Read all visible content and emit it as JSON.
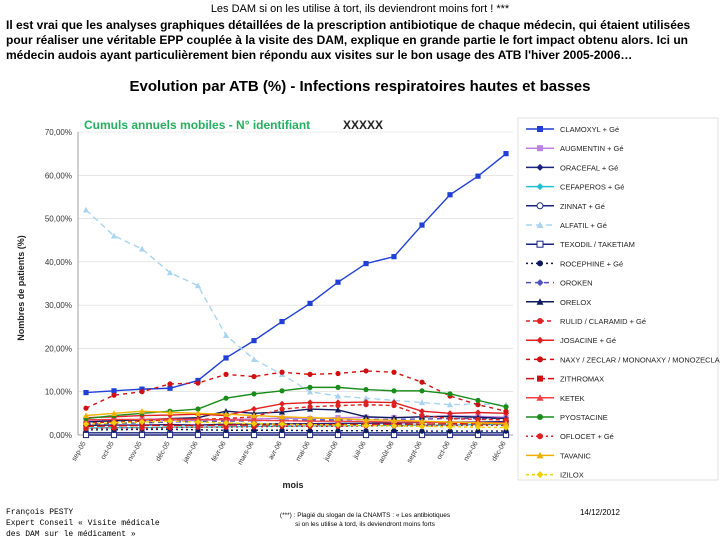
{
  "slide": {
    "top_title": "Les DAM si on les utilise à tort, ils deviendront moins fort ! ***",
    "intro": "Il est vrai que les analyses graphiques détaillées de la prescription antibiotique de chaque médecin, qui étaient utilisées pour réaliser une véritable EPP couplée à la visite des DAM, explique en grande partie le fort impact obtenu alors. Ici un médecin audois ayant particulièrement bien répondu aux visites sur le bon usage des ATB l'hiver 2005-2006…",
    "chart_title": "Evolution par ATB (%) - Infections respiratoires hautes et basses",
    "subtitle": "Cumuls annuels mobiles - N° identifiant",
    "subtitle_code": "XXXXX",
    "footer_left_lines": [
      "François PESTY",
      "Expert Conseil « Visite médicale",
      "des DAM sur le médicament »"
    ],
    "footer_center_lines": [
      "(***) : Plagié du slogan de la CNAMTS : « Les antibiotiques",
      "si on les utilise à tord, ils deviendront moins forts"
    ],
    "footer_right": "14/12/2012"
  },
  "chart_data": {
    "type": "line",
    "title": "Evolution par ATB (%) - Infections respiratoires hautes et basses",
    "subtitle": "Cumuls annuels mobiles - N° identifiant XXXXX",
    "xlabel": "mois",
    "ylabel": "Nombres de patients (%)",
    "ylim": [
      0,
      70
    ],
    "yticks": [
      "0,00%",
      "10,00%",
      "20,00%",
      "30,00%",
      "40,00%",
      "50,00%",
      "60,00%",
      "70,00%"
    ],
    "categories": [
      "sep-05",
      "oct-05",
      "nov-05",
      "déc-05",
      "janv-06",
      "févr-06",
      "mars-06",
      "avr-06",
      "mai-06",
      "juin-06",
      "juil-06",
      "août-06",
      "sept-06",
      "oct-06",
      "nov-06",
      "déc-06"
    ],
    "tick_labels": [
      "sep-05",
      "oct-05",
      "nov-05",
      "déc-05",
      "janv-06",
      "févr-06",
      "mars-06",
      "avr-06",
      "mai-06",
      "juin-06",
      "juil-06",
      "août-06",
      "sept-06",
      "oct-06",
      "nov-06",
      "déc-06"
    ],
    "series": [
      {
        "name": "CLAMOXYL + Gé",
        "color": "#1f3fd6",
        "dash": "",
        "marker": "square",
        "values": [
          9.8,
          10.2,
          10.6,
          10.8,
          12.6,
          17.8,
          21.8,
          26.2,
          30.4,
          35.3,
          39.6,
          41.2,
          48.5,
          55.5,
          59.8,
          65.0
        ]
      },
      {
        "name": "AUGMENTIN + Gé",
        "color": "#c080e0",
        "dash": "",
        "marker": "square",
        "values": [
          3.2,
          3.4,
          3.5,
          3.4,
          3.3,
          3.6,
          3.7,
          3.9,
          3.8,
          4.0,
          4.1,
          4.0,
          4.2,
          4.4,
          4.3,
          4.1
        ]
      },
      {
        "name": "ORACEFAL + Gé",
        "color": "#1a237e",
        "dash": "",
        "marker": "diamond",
        "values": [
          2.2,
          2.3,
          2.3,
          2.4,
          2.3,
          2.5,
          2.5,
          2.6,
          2.6,
          2.7,
          2.7,
          2.8,
          2.9,
          3.0,
          3.0,
          3.1
        ]
      },
      {
        "name": "CEFAPEROS + Gé",
        "color": "#20c0d0",
        "dash": "",
        "marker": "diamond",
        "values": [
          1.6,
          1.7,
          1.7,
          1.8,
          1.8,
          1.9,
          2.0,
          2.0,
          2.1,
          2.1,
          2.2,
          2.2,
          2.3,
          2.3,
          2.4,
          2.4
        ]
      },
      {
        "name": "ZINNAT + Gé",
        "color": "#1a237e",
        "dash": "",
        "marker": "circle-open",
        "values": [
          0.5,
          0.5,
          0.5,
          0.5,
          0.5,
          0.5,
          0.5,
          0.5,
          0.5,
          0.5,
          0.5,
          0.5,
          0.5,
          0.5,
          0.5,
          0.5
        ]
      },
      {
        "name": "ALFATIL + Gé",
        "color": "#a8d4f0",
        "dash": "6,4",
        "marker": "triangle",
        "values": [
          52.0,
          46.0,
          43.0,
          37.5,
          34.5,
          23.0,
          17.5,
          14.0,
          10.0,
          9.0,
          8.5,
          8.0,
          7.5,
          7.0,
          7.2,
          7.0
        ]
      },
      {
        "name": "TEXODIL / TAKETIAM",
        "color": "#1a237e",
        "dash": "",
        "marker": "square-open",
        "values": [
          0.0,
          0.0,
          0.0,
          0.0,
          0.0,
          0.0,
          0.0,
          0.0,
          0.0,
          0.0,
          0.0,
          0.0,
          0.0,
          0.0,
          0.0,
          0.0
        ]
      },
      {
        "name": "ROCEPHINE + Gé",
        "color": "#0d1a5e",
        "dash": "2,3",
        "marker": "circle",
        "values": [
          1.2,
          1.2,
          1.3,
          1.3,
          1.2,
          1.1,
          1.1,
          1.1,
          1.0,
          1.0,
          1.0,
          1.0,
          0.9,
          0.9,
          0.9,
          0.9
        ]
      },
      {
        "name": "OROKEN",
        "color": "#5050c0",
        "dash": "5,4",
        "marker": "diamond",
        "values": [
          2.5,
          2.7,
          2.8,
          3.0,
          3.1,
          3.2,
          3.3,
          3.4,
          3.5,
          3.5,
          3.6,
          3.6,
          3.7,
          3.8,
          3.8,
          3.9
        ]
      },
      {
        "name": "ORELOX",
        "color": "#0d1a5e",
        "dash": "",
        "marker": "triangle",
        "values": [
          3.0,
          3.3,
          3.5,
          3.8,
          4.0,
          5.5,
          5.0,
          5.3,
          6.0,
          5.8,
          4.2,
          4.0,
          4.2,
          4.3,
          4.1,
          3.8
        ]
      },
      {
        "name": "RULID / CLARAMID + Gé",
        "color": "#e02020",
        "dash": "4,3",
        "marker": "circle",
        "values": [
          2.8,
          3.0,
          3.2,
          3.5,
          3.6,
          3.8,
          4.2,
          6.0,
          6.5,
          6.8,
          7.0,
          6.8,
          4.5,
          3.8,
          3.6,
          3.5
        ]
      },
      {
        "name": "JOSACINE + Gé",
        "color": "#e02020",
        "dash": "",
        "marker": "diamond",
        "values": [
          4.0,
          4.2,
          4.5,
          4.6,
          4.8,
          4.5,
          6.0,
          7.2,
          7.5,
          7.5,
          7.6,
          7.5,
          5.5,
          5.0,
          5.2,
          5.0
        ]
      },
      {
        "name": "NAXY / ZECLAR / MONONAXY / MONOZECLAR",
        "color": "#d01010",
        "dash": "4,4",
        "marker": "circle",
        "values": [
          6.2,
          9.2,
          10.0,
          11.8,
          12.0,
          14.0,
          13.5,
          14.5,
          14.0,
          14.2,
          14.8,
          14.5,
          12.2,
          9.0,
          7.0,
          5.5
        ]
      },
      {
        "name": "ZITHROMAX",
        "color": "#d01010",
        "dash": "8,3",
        "marker": "square",
        "values": [
          2.0,
          2.1,
          2.2,
          2.2,
          2.2,
          2.3,
          2.3,
          2.4,
          2.4,
          2.4,
          2.5,
          2.5,
          2.5,
          2.6,
          2.6,
          2.6
        ]
      },
      {
        "name": "KETEK",
        "color": "#f04040",
        "dash": "",
        "marker": "triangle",
        "values": [
          3.5,
          3.6,
          3.6,
          3.7,
          3.6,
          3.5,
          3.4,
          3.3,
          3.2,
          3.2,
          3.1,
          3.0,
          3.0,
          2.9,
          2.9,
          2.8
        ]
      },
      {
        "name": "PYOSTACINE",
        "color": "#1a8c1a",
        "dash": "",
        "marker": "circle",
        "values": [
          3.8,
          4.5,
          5.0,
          5.5,
          6.0,
          8.5,
          9.5,
          10.2,
          11.0,
          11.0,
          10.5,
          10.2,
          10.2,
          9.5,
          8.0,
          6.5
        ]
      },
      {
        "name": "OFLOCET + Gé",
        "color": "#e02020",
        "dash": "2,3",
        "marker": "circle",
        "values": [
          1.5,
          1.6,
          1.6,
          1.7,
          1.8,
          1.8,
          1.9,
          2.0,
          2.0,
          2.0,
          2.1,
          2.1,
          2.1,
          2.2,
          2.2,
          2.2
        ]
      },
      {
        "name": "TAVANIC",
        "color": "#f0b000",
        "dash": "",
        "marker": "triangle",
        "values": [
          4.5,
          5.0,
          5.5,
          5.2,
          5.0,
          4.8,
          4.5,
          4.2,
          4.0,
          3.8,
          3.5,
          3.4,
          3.2,
          3.0,
          2.8,
          2.6
        ]
      },
      {
        "name": "IZILOX",
        "color": "#f0d000",
        "dash": "3,3",
        "marker": "diamond",
        "values": [
          2.5,
          2.8,
          3.0,
          3.2,
          3.0,
          2.8,
          2.6,
          2.5,
          2.4,
          2.3,
          2.2,
          2.1,
          2.0,
          1.9,
          1.8,
          1.7
        ]
      }
    ]
  }
}
